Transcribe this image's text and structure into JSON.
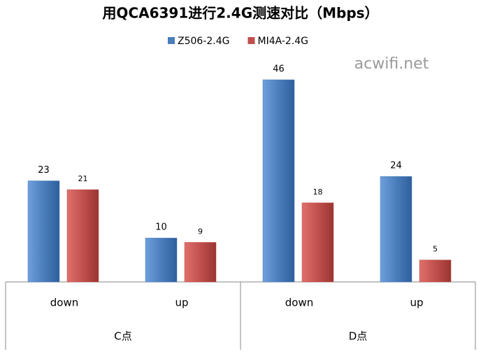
{
  "chart_data": {
    "type": "bar",
    "title": "用QCA6391进行2.4G测速对比（Mbps）",
    "watermark": "acwifi.net",
    "categories": [
      "down",
      "up",
      "down",
      "up"
    ],
    "groups": [
      "C点",
      "D点"
    ],
    "series": [
      {
        "name": "Z506-2.4G",
        "color": "#4a7ebb",
        "values": [
          23,
          10,
          46,
          24
        ]
      },
      {
        "name": "MI4A-2.4G",
        "color": "#c0504d",
        "values": [
          21,
          9,
          18,
          5
        ]
      }
    ]
  }
}
